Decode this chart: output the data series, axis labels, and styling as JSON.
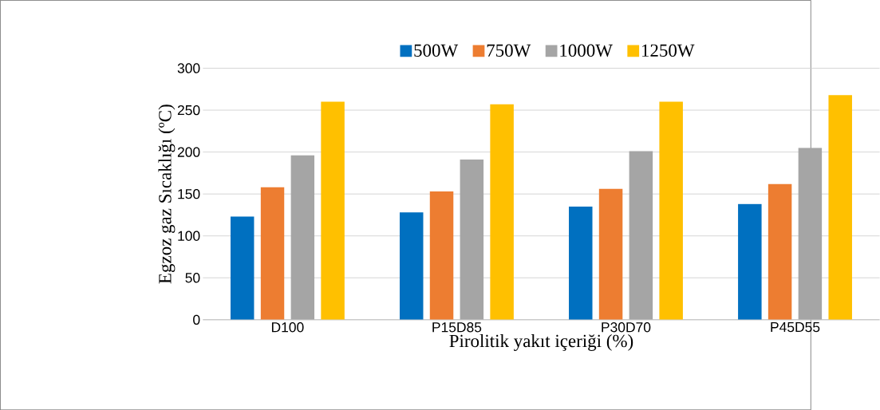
{
  "chart_data": {
    "type": "bar",
    "xlabel": "Pirolitik yakıt içeriği (%)",
    "ylabel": "Egzoz gaz Sıcaklığı (ºC)",
    "categories": [
      "D100",
      "P15D85",
      "P30D70",
      "P45D55"
    ],
    "series": [
      {
        "name": "500W",
        "color": "#0070c0",
        "values": [
          123,
          128,
          135,
          138
        ]
      },
      {
        "name": "750W",
        "color": "#ed7d31",
        "values": [
          158,
          153,
          156,
          162
        ]
      },
      {
        "name": "1000W",
        "color": "#a5a5a5",
        "values": [
          196,
          191,
          201,
          205
        ]
      },
      {
        "name": "1250W",
        "color": "#ffc000",
        "values": [
          260,
          257,
          260,
          268
        ]
      }
    ],
    "ylim": [
      0,
      300
    ],
    "yticks": [
      0,
      50,
      100,
      150,
      200,
      250,
      300
    ],
    "grid": "y",
    "legend": "top"
  }
}
